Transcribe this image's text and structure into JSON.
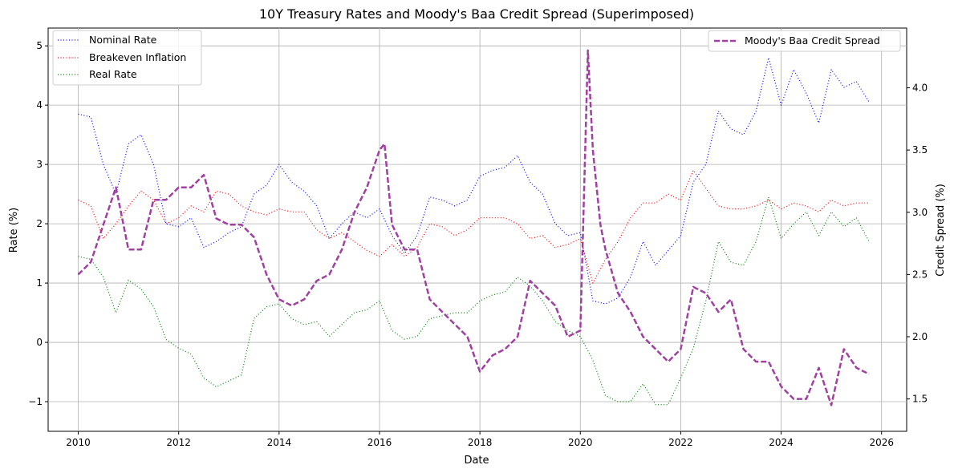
{
  "chart_data": {
    "type": "line",
    "title": "10Y Treasury Rates and Moody's Baa Credit Spread (Superimposed)",
    "xlabel": "Date",
    "ylabel_left": "Rate (%)",
    "ylabel_right": "Credit Spread (%)",
    "xlim": [
      2009.4,
      2026.5
    ],
    "ylim_left": [
      -1.5,
      5.3
    ],
    "ylim_right": [
      1.24,
      4.48
    ],
    "x_ticks": [
      2010,
      2012,
      2014,
      2016,
      2018,
      2020,
      2022,
      2024,
      2026
    ],
    "x_tick_labels": [
      "2010",
      "2012",
      "2014",
      "2016",
      "2018",
      "2020",
      "2022",
      "2024",
      "2026"
    ],
    "y_left_ticks": [
      -1,
      0,
      1,
      2,
      3,
      4,
      5
    ],
    "y_left_tick_labels": [
      "−1",
      "0",
      "1",
      "2",
      "3",
      "4",
      "5"
    ],
    "y_right_ticks": [
      1.5,
      2.0,
      2.5,
      3.0,
      3.5,
      4.0
    ],
    "y_right_tick_labels": [
      "1.5",
      "2.0",
      "2.5",
      "3.0",
      "3.5",
      "4.0"
    ],
    "grid": true,
    "legend_left_position": "upper-left",
    "legend_right_position": "upper-right",
    "series": [
      {
        "name": "Nominal Rate",
        "axis": "left",
        "color": "#0000ff",
        "style": "dotted",
        "x": [
          2010.0,
          2010.25,
          2010.5,
          2010.75,
          2011.0,
          2011.25,
          2011.5,
          2011.75,
          2012.0,
          2012.25,
          2012.5,
          2012.75,
          2013.0,
          2013.25,
          2013.5,
          2013.75,
          2014.0,
          2014.25,
          2014.5,
          2014.75,
          2015.0,
          2015.25,
          2015.5,
          2015.75,
          2016.0,
          2016.25,
          2016.5,
          2016.75,
          2017.0,
          2017.25,
          2017.5,
          2017.75,
          2018.0,
          2018.25,
          2018.5,
          2018.75,
          2019.0,
          2019.25,
          2019.5,
          2019.75,
          2020.0,
          2020.25,
          2020.5,
          2020.75,
          2021.0,
          2021.25,
          2021.5,
          2021.75,
          2022.0,
          2022.25,
          2022.5,
          2022.75,
          2023.0,
          2023.25,
          2023.5,
          2023.75,
          2024.0,
          2024.25,
          2024.5,
          2024.75,
          2025.0,
          2025.25,
          2025.5,
          2025.75
        ],
        "y": [
          3.85,
          3.8,
          3.0,
          2.5,
          3.35,
          3.5,
          3.0,
          2.0,
          1.95,
          2.1,
          1.6,
          1.7,
          1.85,
          1.95,
          2.5,
          2.65,
          3.0,
          2.7,
          2.55,
          2.3,
          1.75,
          2.0,
          2.2,
          2.1,
          2.25,
          1.8,
          1.5,
          1.8,
          2.45,
          2.4,
          2.3,
          2.4,
          2.8,
          2.9,
          2.95,
          3.15,
          2.7,
          2.5,
          2.0,
          1.8,
          1.85,
          0.7,
          0.65,
          0.75,
          1.1,
          1.7,
          1.3,
          1.55,
          1.8,
          2.7,
          3.0,
          3.9,
          3.6,
          3.5,
          3.9,
          4.8,
          4.0,
          4.6,
          4.2,
          3.7,
          4.6,
          4.3,
          4.4,
          4.05
        ]
      },
      {
        "name": "Breakeven Inflation",
        "axis": "left",
        "color": "#ff0000",
        "style": "dotted",
        "x": [
          2010.0,
          2010.25,
          2010.5,
          2010.75,
          2011.0,
          2011.25,
          2011.5,
          2011.75,
          2012.0,
          2012.25,
          2012.5,
          2012.75,
          2013.0,
          2013.25,
          2013.5,
          2013.75,
          2014.0,
          2014.25,
          2014.5,
          2014.75,
          2015.0,
          2015.25,
          2015.5,
          2015.75,
          2016.0,
          2016.25,
          2016.5,
          2016.75,
          2017.0,
          2017.25,
          2017.5,
          2017.75,
          2018.0,
          2018.25,
          2018.5,
          2018.75,
          2019.0,
          2019.25,
          2019.5,
          2019.75,
          2020.0,
          2020.25,
          2020.5,
          2020.75,
          2021.0,
          2021.25,
          2021.5,
          2021.75,
          2022.0,
          2022.25,
          2022.5,
          2022.75,
          2023.0,
          2023.25,
          2023.5,
          2023.75,
          2024.0,
          2024.25,
          2024.5,
          2024.75,
          2025.0,
          2025.25,
          2025.5,
          2025.75
        ],
        "y": [
          2.4,
          2.3,
          1.75,
          2.0,
          2.3,
          2.55,
          2.4,
          2.0,
          2.1,
          2.3,
          2.2,
          2.55,
          2.5,
          2.3,
          2.2,
          2.15,
          2.25,
          2.2,
          2.2,
          1.9,
          1.75,
          1.85,
          1.7,
          1.55,
          1.45,
          1.65,
          1.45,
          1.6,
          2.0,
          1.95,
          1.8,
          1.9,
          2.1,
          2.1,
          2.1,
          2.0,
          1.75,
          1.8,
          1.6,
          1.65,
          1.75,
          1.0,
          1.4,
          1.7,
          2.1,
          2.35,
          2.35,
          2.5,
          2.4,
          2.9,
          2.6,
          2.3,
          2.25,
          2.25,
          2.3,
          2.4,
          2.25,
          2.35,
          2.3,
          2.2,
          2.4,
          2.3,
          2.35,
          2.35
        ]
      },
      {
        "name": "Real Rate",
        "axis": "left",
        "color": "#008000",
        "style": "dotted",
        "x": [
          2010.0,
          2010.25,
          2010.5,
          2010.75,
          2011.0,
          2011.25,
          2011.5,
          2011.75,
          2012.0,
          2012.25,
          2012.5,
          2012.75,
          2013.0,
          2013.25,
          2013.5,
          2013.75,
          2014.0,
          2014.25,
          2014.5,
          2014.75,
          2015.0,
          2015.25,
          2015.5,
          2015.75,
          2016.0,
          2016.25,
          2016.5,
          2016.75,
          2017.0,
          2017.25,
          2017.5,
          2017.75,
          2018.0,
          2018.25,
          2018.5,
          2018.75,
          2019.0,
          2019.25,
          2019.5,
          2019.75,
          2020.0,
          2020.25,
          2020.5,
          2020.75,
          2021.0,
          2021.25,
          2021.5,
          2021.75,
          2022.0,
          2022.25,
          2022.5,
          2022.75,
          2023.0,
          2023.25,
          2023.5,
          2023.75,
          2024.0,
          2024.25,
          2024.5,
          2024.75,
          2025.0,
          2025.25,
          2025.5,
          2025.75
        ],
        "y": [
          1.45,
          1.4,
          1.1,
          0.5,
          1.05,
          0.9,
          0.6,
          0.05,
          -0.1,
          -0.2,
          -0.6,
          -0.75,
          -0.65,
          -0.55,
          0.4,
          0.6,
          0.65,
          0.4,
          0.3,
          0.35,
          0.1,
          0.3,
          0.5,
          0.55,
          0.7,
          0.2,
          0.05,
          0.1,
          0.4,
          0.45,
          0.5,
          0.5,
          0.7,
          0.8,
          0.85,
          1.1,
          0.95,
          0.7,
          0.35,
          0.2,
          0.1,
          -0.3,
          -0.9,
          -1.0,
          -1.0,
          -0.7,
          -1.05,
          -1.05,
          -0.6,
          -0.1,
          0.7,
          1.7,
          1.35,
          1.3,
          1.7,
          2.45,
          1.75,
          2.0,
          2.2,
          1.8,
          2.2,
          1.95,
          2.1,
          1.7
        ]
      },
      {
        "name": "Moody's Baa Credit Spread",
        "axis": "right",
        "color": "#a040a0",
        "style": "dashed",
        "x": [
          2010.0,
          2010.25,
          2010.5,
          2010.75,
          2011.0,
          2011.25,
          2011.5,
          2011.75,
          2012.0,
          2012.25,
          2012.5,
          2012.75,
          2013.0,
          2013.25,
          2013.5,
          2013.75,
          2014.0,
          2014.25,
          2014.5,
          2014.75,
          2015.0,
          2015.25,
          2015.5,
          2015.75,
          2016.0,
          2016.1,
          2016.25,
          2016.5,
          2016.75,
          2017.0,
          2017.25,
          2017.5,
          2017.75,
          2018.0,
          2018.25,
          2018.5,
          2018.75,
          2019.0,
          2019.25,
          2019.5,
          2019.75,
          2020.0,
          2020.15,
          2020.25,
          2020.4,
          2020.5,
          2020.75,
          2021.0,
          2021.25,
          2021.5,
          2021.75,
          2022.0,
          2022.25,
          2022.5,
          2022.75,
          2023.0,
          2023.25,
          2023.5,
          2023.75,
          2024.0,
          2024.25,
          2024.5,
          2024.75,
          2025.0,
          2025.25,
          2025.5,
          2025.75
        ],
        "y": [
          2.5,
          2.6,
          2.9,
          3.2,
          2.7,
          2.7,
          3.1,
          3.1,
          3.2,
          3.2,
          3.3,
          2.95,
          2.9,
          2.9,
          2.8,
          2.5,
          2.3,
          2.25,
          2.3,
          2.45,
          2.5,
          2.7,
          3.0,
          3.2,
          3.5,
          3.55,
          2.9,
          2.7,
          2.7,
          2.3,
          2.2,
          2.1,
          2.0,
          1.72,
          1.85,
          1.9,
          2.0,
          2.45,
          2.35,
          2.25,
          2.0,
          2.05,
          4.3,
          3.5,
          2.9,
          2.7,
          2.35,
          2.2,
          2.0,
          1.9,
          1.8,
          1.9,
          2.4,
          2.35,
          2.2,
          2.3,
          1.9,
          1.8,
          1.8,
          1.6,
          1.5,
          1.5,
          1.75,
          1.45,
          1.9,
          1.75,
          1.7
        ]
      }
    ]
  }
}
